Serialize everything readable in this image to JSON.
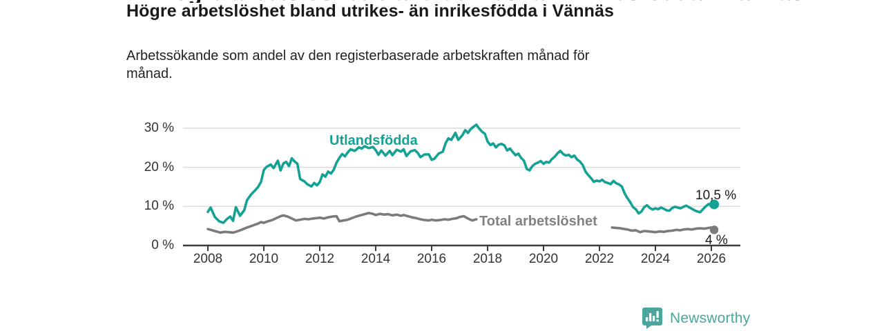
{
  "header": {
    "title": "Högre arbetslöshet bland utrikes- än inrikesfödda i Vännäs",
    "subtitle_lines": [
      "Arbetssökande som andel av den registerbaserade arbetskraften månad för",
      "månad."
    ]
  },
  "branding": {
    "logo_text": "Newsworthy",
    "logo_icon": "bar-chart-speech-bubble",
    "logo_color": "#4aa59d"
  },
  "colors": {
    "series_utlandsfodda": "#14a295",
    "series_total": "#7b7b7b",
    "axis": "#3a3a3a",
    "gridline": "#dcdcdc",
    "annotation_text": "#1a1a1a"
  },
  "chart_data": {
    "type": "line",
    "title": "Högre arbetslöshet bland utrikes- än inrikesfödda i Vännäs",
    "subtitle": "Arbetssökande som andel av den registerbaserade arbetskraften månad för månad.",
    "unit": "%",
    "x_axis": {
      "ticks": [
        2008,
        2010,
        2012,
        2014,
        2016,
        2018,
        2020,
        2022,
        2024,
        2026
      ],
      "tick_labels": [
        "2008",
        "2010",
        "2012",
        "2014",
        "2016",
        "2018",
        "2020",
        "2022",
        "2024",
        "2026"
      ],
      "range": [
        2008,
        2026.2
      ]
    },
    "y_axis": {
      "tick_values": [
        30,
        20,
        10,
        0
      ],
      "tick_labels": [
        "30 %",
        "20 %",
        "10 %",
        "0 %"
      ],
      "range": [
        0,
        32
      ],
      "grid": true
    },
    "legend_position": "inline-labels",
    "series": [
      {
        "name": "Utlandsfödda",
        "inline_label": "Utlandsfödda",
        "color": "#14a295",
        "end_label": "10,5 %",
        "end_value": 10.5,
        "points": [
          [
            2008.0,
            8.6
          ],
          [
            2008.1,
            9.7
          ],
          [
            2008.25,
            7.3
          ],
          [
            2008.4,
            6.2
          ],
          [
            2008.55,
            5.8
          ],
          [
            2008.7,
            6.9
          ],
          [
            2008.8,
            7.4
          ],
          [
            2008.9,
            6.3
          ],
          [
            2009.0,
            9.8
          ],
          [
            2009.15,
            7.6
          ],
          [
            2009.3,
            9.0
          ],
          [
            2009.4,
            11.6
          ],
          [
            2009.55,
            13.1
          ],
          [
            2009.7,
            14.2
          ],
          [
            2009.8,
            15.0
          ],
          [
            2009.9,
            16.3
          ],
          [
            2010.0,
            19.3
          ],
          [
            2010.1,
            20.1
          ],
          [
            2010.25,
            20.7
          ],
          [
            2010.35,
            19.8
          ],
          [
            2010.5,
            21.7
          ],
          [
            2010.6,
            19.2
          ],
          [
            2010.7,
            21.0
          ],
          [
            2010.8,
            21.4
          ],
          [
            2010.9,
            20.3
          ],
          [
            2011.0,
            22.3
          ],
          [
            2011.1,
            21.5
          ],
          [
            2011.2,
            20.9
          ],
          [
            2011.3,
            17.0
          ],
          [
            2011.45,
            16.4
          ],
          [
            2011.55,
            15.7
          ],
          [
            2011.7,
            15.1
          ],
          [
            2011.8,
            16.0
          ],
          [
            2011.9,
            15.4
          ],
          [
            2012.0,
            16.2
          ],
          [
            2012.1,
            18.2
          ],
          [
            2012.2,
            17.6
          ],
          [
            2012.3,
            18.9
          ],
          [
            2012.4,
            18.4
          ],
          [
            2012.5,
            19.4
          ],
          [
            2012.6,
            21.2
          ],
          [
            2012.7,
            22.4
          ],
          [
            2012.8,
            23.4
          ],
          [
            2012.9,
            22.8
          ],
          [
            2013.0,
            23.8
          ],
          [
            2013.1,
            24.6
          ],
          [
            2013.25,
            24.2
          ],
          [
            2013.4,
            25.1
          ],
          [
            2013.5,
            24.8
          ],
          [
            2013.6,
            25.4
          ],
          [
            2013.75,
            24.9
          ],
          [
            2013.9,
            25.2
          ],
          [
            2014.0,
            24.4
          ],
          [
            2014.1,
            23.2
          ],
          [
            2014.2,
            24.3
          ],
          [
            2014.35,
            23.0
          ],
          [
            2014.5,
            24.2
          ],
          [
            2014.6,
            23.1
          ],
          [
            2014.75,
            24.5
          ],
          [
            2014.9,
            24.0
          ],
          [
            2015.0,
            24.6
          ],
          [
            2015.1,
            22.9
          ],
          [
            2015.25,
            24.1
          ],
          [
            2015.4,
            24.4
          ],
          [
            2015.5,
            23.7
          ],
          [
            2015.6,
            22.6
          ],
          [
            2015.75,
            23.3
          ],
          [
            2015.9,
            23.3
          ],
          [
            2016.0,
            21.9
          ],
          [
            2016.1,
            22.2
          ],
          [
            2016.25,
            23.5
          ],
          [
            2016.4,
            24.0
          ],
          [
            2016.5,
            26.2
          ],
          [
            2016.6,
            27.4
          ],
          [
            2016.7,
            27.0
          ],
          [
            2016.85,
            28.8
          ],
          [
            2016.95,
            27.0
          ],
          [
            2017.1,
            28.2
          ],
          [
            2017.2,
            29.5
          ],
          [
            2017.3,
            28.8
          ],
          [
            2017.4,
            29.8
          ],
          [
            2017.5,
            30.4
          ],
          [
            2017.6,
            30.9
          ],
          [
            2017.7,
            29.9
          ],
          [
            2017.8,
            29.1
          ],
          [
            2017.9,
            28.6
          ],
          [
            2018.0,
            26.6
          ],
          [
            2018.1,
            25.7
          ],
          [
            2018.2,
            26.1
          ],
          [
            2018.3,
            25.1
          ],
          [
            2018.4,
            25.8
          ],
          [
            2018.5,
            26.0
          ],
          [
            2018.6,
            25.6
          ],
          [
            2018.7,
            24.3
          ],
          [
            2018.8,
            24.8
          ],
          [
            2018.9,
            23.9
          ],
          [
            2019.0,
            23.1
          ],
          [
            2019.1,
            23.5
          ],
          [
            2019.2,
            22.4
          ],
          [
            2019.3,
            21.7
          ],
          [
            2019.4,
            19.6
          ],
          [
            2019.5,
            19.2
          ],
          [
            2019.6,
            20.3
          ],
          [
            2019.7,
            20.9
          ],
          [
            2019.8,
            21.2
          ],
          [
            2019.9,
            21.6
          ],
          [
            2020.0,
            20.9
          ],
          [
            2020.1,
            21.4
          ],
          [
            2020.2,
            21.2
          ],
          [
            2020.3,
            22.1
          ],
          [
            2020.4,
            22.7
          ],
          [
            2020.5,
            23.6
          ],
          [
            2020.6,
            24.2
          ],
          [
            2020.7,
            23.4
          ],
          [
            2020.8,
            23.0
          ],
          [
            2020.9,
            23.2
          ],
          [
            2021.0,
            22.6
          ],
          [
            2021.1,
            23.0
          ],
          [
            2021.2,
            22.0
          ],
          [
            2021.3,
            21.5
          ],
          [
            2021.4,
            20.6
          ],
          [
            2021.5,
            18.9
          ],
          [
            2021.6,
            18.0
          ],
          [
            2021.7,
            17.2
          ],
          [
            2021.8,
            16.3
          ],
          [
            2021.9,
            16.6
          ],
          [
            2022.0,
            16.4
          ],
          [
            2022.1,
            16.8
          ],
          [
            2022.2,
            16.2
          ],
          [
            2022.3,
            16.0
          ],
          [
            2022.4,
            15.7
          ],
          [
            2022.5,
            16.5
          ],
          [
            2022.6,
            15.9
          ],
          [
            2022.7,
            15.6
          ],
          [
            2022.8,
            15.1
          ],
          [
            2022.9,
            13.3
          ],
          [
            2023.0,
            12.1
          ],
          [
            2023.1,
            11.1
          ],
          [
            2023.2,
            9.8
          ],
          [
            2023.3,
            9.3
          ],
          [
            2023.4,
            8.2
          ],
          [
            2023.5,
            8.7
          ],
          [
            2023.6,
            9.8
          ],
          [
            2023.7,
            10.3
          ],
          [
            2023.8,
            9.6
          ],
          [
            2023.9,
            9.2
          ],
          [
            2024.0,
            9.5
          ],
          [
            2024.1,
            9.3
          ],
          [
            2024.2,
            9.7
          ],
          [
            2024.3,
            9.4
          ],
          [
            2024.4,
            9.0
          ],
          [
            2024.5,
            8.9
          ],
          [
            2024.6,
            9.6
          ],
          [
            2024.7,
            9.9
          ],
          [
            2024.8,
            9.7
          ],
          [
            2024.9,
            9.5
          ],
          [
            2025.0,
            9.9
          ],
          [
            2025.1,
            10.2
          ],
          [
            2025.2,
            9.8
          ],
          [
            2025.3,
            9.4
          ],
          [
            2025.4,
            9.0
          ],
          [
            2025.5,
            8.7
          ],
          [
            2025.6,
            8.5
          ],
          [
            2025.7,
            9.3
          ],
          [
            2025.8,
            10.0
          ],
          [
            2025.9,
            10.6
          ],
          [
            2026.0,
            10.2
          ],
          [
            2026.1,
            10.5
          ]
        ]
      },
      {
        "name": "Total arbetslöshet",
        "inline_label": "Total arbetslöshet",
        "color": "#7b7b7b",
        "end_label": "4 %",
        "end_value": 4.0,
        "segments": [
          [
            [
              2008.0,
              4.2
            ],
            [
              2008.15,
              3.9
            ],
            [
              2008.3,
              3.6
            ],
            [
              2008.45,
              3.3
            ],
            [
              2008.6,
              3.5
            ],
            [
              2008.75,
              3.4
            ],
            [
              2008.9,
              3.3
            ],
            [
              2009.0,
              3.5
            ],
            [
              2009.2,
              4.0
            ],
            [
              2009.4,
              4.6
            ],
            [
              2009.6,
              5.1
            ],
            [
              2009.8,
              5.6
            ],
            [
              2009.9,
              6.0
            ],
            [
              2010.0,
              5.8
            ],
            [
              2010.15,
              6.2
            ],
            [
              2010.3,
              6.5
            ],
            [
              2010.45,
              7.0
            ],
            [
              2010.6,
              7.5
            ],
            [
              2010.7,
              7.7
            ],
            [
              2010.85,
              7.4
            ],
            [
              2011.0,
              6.9
            ],
            [
              2011.15,
              6.4
            ],
            [
              2011.3,
              6.6
            ],
            [
              2011.45,
              6.8
            ],
            [
              2011.6,
              6.7
            ],
            [
              2011.75,
              6.9
            ],
            [
              2011.9,
              7.0
            ],
            [
              2012.0,
              7.1
            ],
            [
              2012.15,
              6.9
            ],
            [
              2012.3,
              7.2
            ],
            [
              2012.45,
              7.4
            ],
            [
              2012.6,
              7.5
            ],
            [
              2012.7,
              6.2
            ],
            [
              2012.85,
              6.4
            ],
            [
              2013.0,
              6.6
            ],
            [
              2013.15,
              7.0
            ],
            [
              2013.3,
              7.4
            ],
            [
              2013.45,
              7.7
            ],
            [
              2013.6,
              8.0
            ],
            [
              2013.75,
              8.3
            ],
            [
              2013.9,
              8.1
            ],
            [
              2014.0,
              7.8
            ],
            [
              2014.15,
              8.1
            ],
            [
              2014.3,
              7.9
            ],
            [
              2014.45,
              8.0
            ],
            [
              2014.6,
              7.7
            ],
            [
              2014.75,
              7.9
            ],
            [
              2014.9,
              7.6
            ],
            [
              2015.0,
              7.8
            ],
            [
              2015.15,
              7.5
            ],
            [
              2015.3,
              7.2
            ],
            [
              2015.45,
              7.0
            ],
            [
              2015.6,
              6.7
            ],
            [
              2015.75,
              6.5
            ],
            [
              2015.9,
              6.4
            ],
            [
              2016.0,
              6.6
            ],
            [
              2016.15,
              6.4
            ],
            [
              2016.3,
              6.5
            ],
            [
              2016.45,
              6.7
            ],
            [
              2016.6,
              6.6
            ],
            [
              2016.75,
              6.8
            ],
            [
              2016.9,
              7.0
            ],
            [
              2017.0,
              7.3
            ],
            [
              2017.15,
              7.5
            ],
            [
              2017.3,
              6.9
            ],
            [
              2017.45,
              6.4
            ],
            [
              2017.6,
              6.7
            ]
          ],
          [
            [
              2022.45,
              4.6
            ],
            [
              2022.6,
              4.5
            ],
            [
              2022.75,
              4.4
            ],
            [
              2022.9,
              4.2
            ],
            [
              2023.0,
              4.1
            ],
            [
              2023.15,
              3.8
            ],
            [
              2023.3,
              3.9
            ],
            [
              2023.45,
              3.4
            ],
            [
              2023.6,
              3.7
            ],
            [
              2023.75,
              3.6
            ],
            [
              2023.9,
              3.5
            ],
            [
              2024.0,
              3.4
            ],
            [
              2024.15,
              3.6
            ],
            [
              2024.3,
              3.5
            ],
            [
              2024.45,
              3.7
            ],
            [
              2024.6,
              3.8
            ],
            [
              2024.75,
              4.0
            ],
            [
              2024.9,
              3.9
            ],
            [
              2025.0,
              4.1
            ],
            [
              2025.15,
              4.2
            ],
            [
              2025.3,
              4.1
            ],
            [
              2025.45,
              4.3
            ],
            [
              2025.6,
              4.4
            ],
            [
              2025.75,
              4.3
            ],
            [
              2025.9,
              4.5
            ],
            [
              2026.0,
              4.6
            ],
            [
              2026.1,
              4.0
            ]
          ]
        ]
      }
    ]
  }
}
